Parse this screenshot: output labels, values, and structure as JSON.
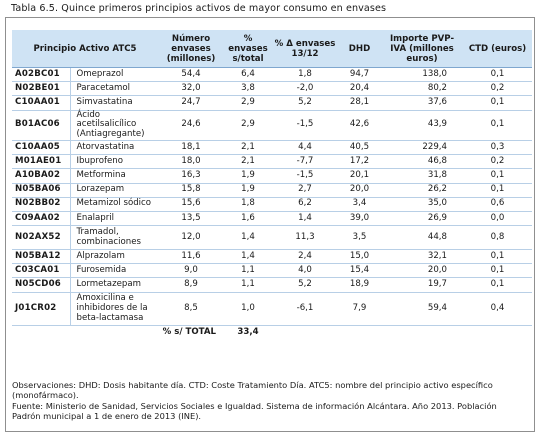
{
  "title": "Tabla 6.5. Quince primeros principios activos de mayor consumo en envases",
  "headers": {
    "principio": "Principio Activo ATC5",
    "envases": "Número envases (millones)",
    "pct": "% envases s/total",
    "var": "% Δ envases 13/12",
    "dhd": "DHD",
    "importe": "Importe PVP-IVA (millones euros)",
    "ctd": "CTD (euros)"
  },
  "rows": [
    {
      "code": "A02BC01",
      "name": "Omeprazol",
      "envases": "54,4",
      "pct": "6,4",
      "var": "1,8",
      "dhd": "94,7",
      "importe": "138,0",
      "ctd": "0,1"
    },
    {
      "code": "N02BE01",
      "name": "Paracetamol",
      "envases": "32,0",
      "pct": "3,8",
      "var": "-2,0",
      "dhd": "20,4",
      "importe": "80,2",
      "ctd": "0,2"
    },
    {
      "code": "C10AA01",
      "name": "Simvastatina",
      "envases": "24,7",
      "pct": "2,9",
      "var": "5,2",
      "dhd": "28,1",
      "importe": "37,6",
      "ctd": "0,1"
    },
    {
      "code": "B01AC06",
      "name": "Ácido acetilsalicílico (Antiagregante)",
      "envases": "24,6",
      "pct": "2,9",
      "var": "-1,5",
      "dhd": "42,6",
      "importe": "43,9",
      "ctd": "0,1"
    },
    {
      "code": "C10AA05",
      "name": "Atorvastatina",
      "envases": "18,1",
      "pct": "2,1",
      "var": "4,4",
      "dhd": "40,5",
      "importe": "229,4",
      "ctd": "0,3"
    },
    {
      "code": "M01AE01",
      "name": "Ibuprofeno",
      "envases": "18,0",
      "pct": "2,1",
      "var": "-7,7",
      "dhd": "17,2",
      "importe": "46,8",
      "ctd": "0,2"
    },
    {
      "code": "A10BA02",
      "name": "Metformina",
      "envases": "16,3",
      "pct": "1,9",
      "var": "-1,5",
      "dhd": "20,1",
      "importe": "31,8",
      "ctd": "0,1"
    },
    {
      "code": "N05BA06",
      "name": "Lorazepam",
      "envases": "15,8",
      "pct": "1,9",
      "var": "2,7",
      "dhd": "20,0",
      "importe": "26,2",
      "ctd": "0,1"
    },
    {
      "code": "N02BB02",
      "name": "Metamizol sódico",
      "envases": "15,6",
      "pct": "1,8",
      "var": "6,2",
      "dhd": "3,4",
      "importe": "35,0",
      "ctd": "0,6"
    },
    {
      "code": "C09AA02",
      "name": "Enalapril",
      "envases": "13,5",
      "pct": "1,6",
      "var": "1,4",
      "dhd": "39,0",
      "importe": "26,9",
      "ctd": "0,0"
    },
    {
      "code": "N02AX52",
      "name": "Tramadol, combinaciones",
      "envases": "12,0",
      "pct": "1,4",
      "var": "11,3",
      "dhd": "3,5",
      "importe": "44,8",
      "ctd": "0,8"
    },
    {
      "code": "N05BA12",
      "name": "Alprazolam",
      "envases": "11,6",
      "pct": "1,4",
      "var": "2,4",
      "dhd": "15,0",
      "importe": "32,1",
      "ctd": "0,1"
    },
    {
      "code": "C03CA01",
      "name": "Furosemida",
      "envases": "9,0",
      "pct": "1,1",
      "var": "4,0",
      "dhd": "15,4",
      "importe": "20,0",
      "ctd": "0,1"
    },
    {
      "code": "N05CD06",
      "name": "Lormetazepam",
      "envases": "8,9",
      "pct": "1,1",
      "var": "5,2",
      "dhd": "18,9",
      "importe": "19,7",
      "ctd": "0,1"
    },
    {
      "code": "J01CR02",
      "name": "Amoxicilina e inhibidores de la beta-lactamasa",
      "envases": "8,5",
      "pct": "1,0",
      "var": "-6,1",
      "dhd": "7,9",
      "importe": "59,4",
      "ctd": "0,4"
    }
  ],
  "total": {
    "label": "% s/ TOTAL",
    "value": "33,4"
  },
  "notes": {
    "observaciones": "Observaciones: DHD: Dosis habitante día. CTD: Coste Tratamiento Día. ATC5: nombre del principio activo específico (monofármaco).",
    "fuente": "Fuente: Ministerio de Sanidad, Servicios Sociales e Igualdad. Sistema de información Alcántara. Año 2013. Población Padrón municipal a 1 de enero de 2013 (INE)."
  }
}
